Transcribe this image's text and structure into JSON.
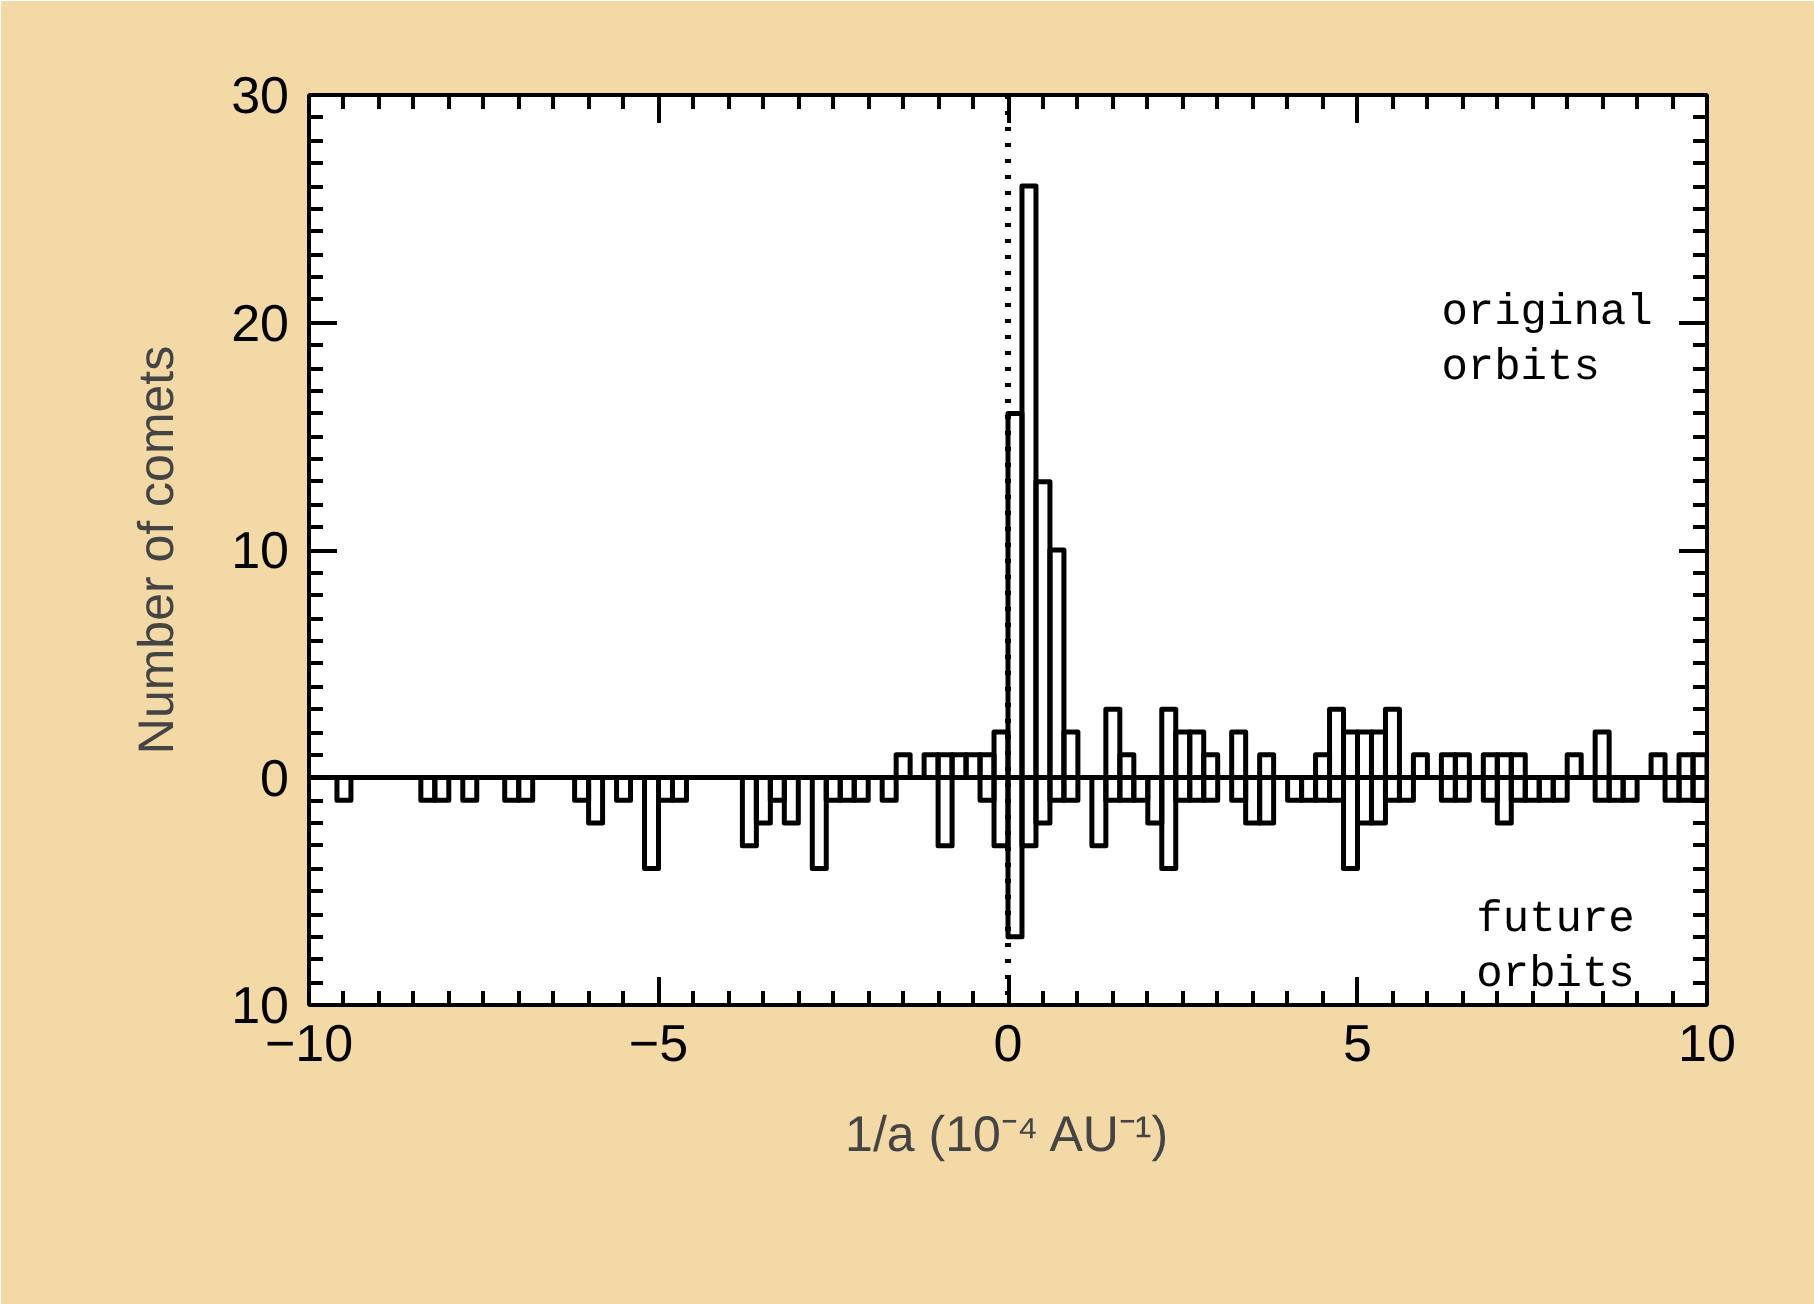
{
  "chart_data": {
    "type": "histogram",
    "xlabel": "1/a (10⁻⁴ AU⁻¹)",
    "ylabel": "Number of comets",
    "bins": [
      -10.0,
      -9.8,
      -9.6,
      -9.4,
      -9.2,
      -9.0,
      -8.8,
      -8.6,
      -8.4,
      -8.2,
      -8.0,
      -7.8,
      -7.6,
      -7.4,
      -7.2,
      -7.0,
      -6.8,
      -6.6,
      -6.4,
      -6.2,
      -6.0,
      -5.8,
      -5.6,
      -5.4,
      -5.2,
      -5.0,
      -4.8,
      -4.6,
      -4.4,
      -4.2,
      -4.0,
      -3.8,
      -3.6,
      -3.4,
      -3.2,
      -3.0,
      -2.8,
      -2.6,
      -2.4,
      -2.2,
      -2.0,
      -1.8,
      -1.6,
      -1.4,
      -1.2,
      -1.0,
      -0.8,
      -0.6,
      -0.4,
      -0.2,
      0.0,
      0.2,
      0.4,
      0.6,
      0.8,
      1.0,
      1.2,
      1.4,
      1.6,
      1.8,
      2.0,
      2.2,
      2.4,
      2.6,
      2.8,
      3.0,
      3.2,
      3.4,
      3.6,
      3.8,
      4.0,
      4.2,
      4.4,
      4.6,
      4.8,
      5.0,
      5.2,
      5.4,
      5.6,
      5.8,
      6.0,
      6.2,
      6.4,
      6.6,
      6.8,
      7.0,
      7.2,
      7.4,
      7.6,
      7.8,
      8.0,
      8.2,
      8.4,
      8.6,
      8.8,
      9.0,
      9.2,
      9.4,
      9.6,
      9.8,
      10.0
    ],
    "series": [
      {
        "name": "original orbits",
        "color": "#000000",
        "values": [
          0,
          0,
          0,
          0,
          0,
          0,
          0,
          0,
          0,
          0,
          0,
          0,
          0,
          0,
          0,
          0,
          0,
          0,
          0,
          0,
          0,
          0,
          0,
          0,
          0,
          0,
          0,
          0,
          0,
          0,
          0,
          0,
          0,
          0,
          0,
          0,
          0,
          0,
          0,
          0,
          0,
          0,
          1,
          0,
          1,
          1,
          1,
          1,
          1,
          2,
          16,
          26,
          13,
          10,
          2,
          0,
          0,
          3,
          1,
          0,
          0,
          3,
          2,
          2,
          1,
          0,
          2,
          0,
          1,
          0,
          0,
          0,
          1,
          3,
          2,
          2,
          2,
          3,
          0,
          1,
          0,
          1,
          1,
          0,
          1,
          1,
          1,
          0,
          0,
          0,
          1,
          0,
          2,
          0,
          0,
          0,
          1,
          0,
          1,
          1
        ]
      },
      {
        "name": "future orbits",
        "color": "#000000",
        "values": [
          0,
          0,
          -1,
          0,
          0,
          0,
          0,
          0,
          -1,
          -1,
          0,
          -1,
          0,
          0,
          -1,
          -1,
          0,
          0,
          0,
          -1,
          -2,
          0,
          -1,
          0,
          -4,
          -1,
          -1,
          0,
          0,
          0,
          0,
          -3,
          -2,
          -1,
          -2,
          0,
          -4,
          -1,
          -1,
          -1,
          0,
          -1,
          0,
          0,
          0,
          -3,
          0,
          0,
          -1,
          -3,
          -7,
          -3,
          -2,
          -1,
          -1,
          0,
          -3,
          -1,
          -1,
          -1,
          -2,
          -4,
          -1,
          -1,
          -1,
          0,
          -1,
          -2,
          -2,
          0,
          -1,
          -1,
          -1,
          -1,
          -4,
          -2,
          -2,
          -1,
          -1,
          0,
          0,
          -1,
          -1,
          0,
          -1,
          -2,
          -1,
          -1,
          -1,
          -1,
          0,
          0,
          -1,
          -1,
          -1,
          0,
          0,
          -1,
          -1,
          -1
        ]
      }
    ],
    "xlim": [
      -10,
      10
    ],
    "ylim": [
      -10,
      30
    ],
    "xticks": [
      -10,
      -5,
      0,
      5,
      10
    ],
    "yticks": [
      {
        "value": -10,
        "label": "10"
      },
      0,
      10,
      20,
      30
    ],
    "ref_lines": [
      {
        "axis": "x",
        "value": 0,
        "label": null,
        "line_style": "dotted",
        "color": "#000000"
      }
    ],
    "grid": false,
    "legend": "right"
  }
}
